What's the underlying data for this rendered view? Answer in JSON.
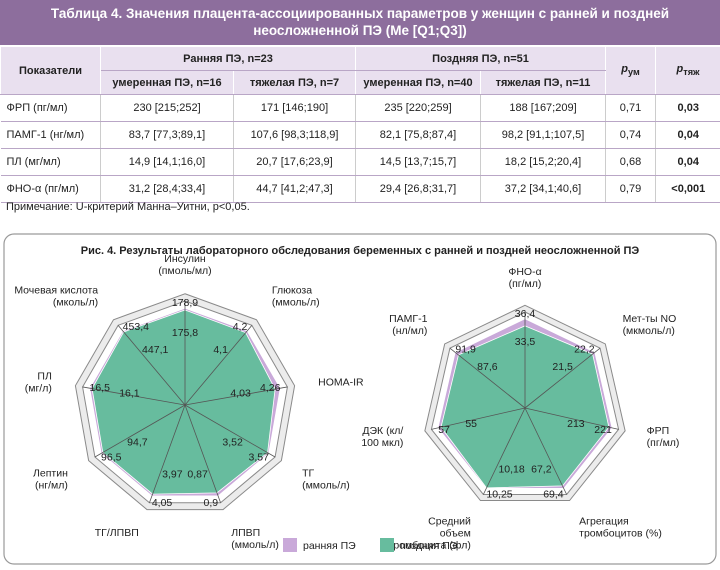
{
  "table": {
    "title": "Таблица 4. Значения плацента-ассоциированных параметров у женщин с ранней и поздней неосложненной ПЭ (Me [Q1;Q3])",
    "columns": {
      "indicator": "Показатели",
      "groups": [
        "Ранняя ПЭ, n=23",
        "Поздняя ПЭ, n=51"
      ],
      "subgroups": [
        "умеренная ПЭ, n=16",
        "тяжелая ПЭ, n=7",
        "умеренная ПЭ, n=40",
        "тяжелая ПЭ, n=11"
      ],
      "p": [
        {
          "symbol": "p",
          "sub": "ум"
        },
        {
          "symbol": "p",
          "sub": "тяж"
        }
      ]
    },
    "rows": [
      [
        "ФРП (пг/мл)",
        "230 [215;252]",
        "171 [146;190]",
        "235 [220;259]",
        "188 [167;209]",
        "0,71",
        "0,03"
      ],
      [
        "ПАМГ-1 (нг/мл)",
        "83,7 [77,3;89,1]",
        "107,6 [98,3;118,9]",
        "82,1 [75,8;87,4]",
        "98,2 [91,1;107,5]",
        "0,74",
        "0,04"
      ],
      [
        "ПЛ (мг/мл)",
        "14,9 [14,1;16,0]",
        "20,7 [17,6;23,9]",
        "14,5 [13,7;15,7]",
        "18,2 [15,2;20,4]",
        "0,68",
        "0,04"
      ],
      [
        "ФНО-α (пг/мл)",
        "31,2 [28,4;33,4]",
        "44,7 [41,2;47,3]",
        "29,4 [26,8;31,7]",
        "37,2 [34,1;40,6]",
        "0,79",
        "<0,001"
      ]
    ],
    "note": "Примечание: U-критерий Манна–Уитни, p<0,05."
  },
  "figure": {
    "title": "Рис. 4. Результаты лабораторного обследования беременных с ранней и поздней неосложненной ПЭ"
  },
  "chart_data": [
    {
      "type": "radar",
      "axes": [
        [
          "Инсулин",
          "(пмоль/мл)"
        ],
        [
          "Глюкоза",
          "(ммоль/л)"
        ],
        [
          "HOMA-IR"
        ],
        [
          "ТГ",
          "(ммоль/л)"
        ],
        [
          "ЛПВП",
          "(ммоль/л)"
        ],
        [
          "ТГ/ЛПВП"
        ],
        [
          "Лептин",
          "(нг/мл)"
        ],
        [
          "ПЛ",
          "(мг/л)"
        ],
        [
          "Мочевая кислота",
          "(мколь/л)"
        ]
      ],
      "series": [
        {
          "name": "ранняя ПЭ",
          "color": "#c9a9d9",
          "values": [
            178.9,
            4.2,
            4.26,
            3.57,
            0.9,
            4.05,
            96.5,
            16.5,
            453.4
          ],
          "value_labels": [
            "178,9",
            "4,2",
            "4,26",
            "3,57",
            "0,9",
            "4,05",
            "96,5",
            "16,5",
            "453,4"
          ]
        },
        {
          "name": "поздняя ПЭ",
          "color": "#67bc9e",
          "values": [
            175.8,
            4.1,
            4.03,
            3.52,
            0.87,
            3.97,
            94.7,
            16.1,
            447.1
          ],
          "value_labels": [
            "175,8",
            "4,1",
            "4,03",
            "3,52",
            "0,87",
            "3,97",
            "94,7",
            "16,1",
            "447,1"
          ]
        }
      ]
    },
    {
      "type": "radar",
      "axes": [
        [
          "ФНО-α",
          "(пг/мл)"
        ],
        [
          "Мет-ты NO",
          "(мкмоль/л)"
        ],
        [
          "ФРП",
          "(пг/мл)"
        ],
        [
          "Агрегация",
          "тромбоцитов (%)"
        ],
        [
          "Средний",
          "объем",
          "тромбоцита (фл)"
        ],
        [
          "ДЭК (кл/",
          "100 мкл)"
        ],
        [
          "ПАМГ-1",
          "(нл/мл)"
        ]
      ],
      "series": [
        {
          "color": "#c9a9d9",
          "values": [
            36.4,
            22.2,
            221,
            69.4,
            10.25,
            57,
            91.9
          ],
          "value_labels": [
            "36,4",
            "22,2",
            "221",
            "69,4",
            "10,25",
            "57",
            "91,9"
          ]
        },
        {
          "color": "#67bc9e",
          "values": [
            33.5,
            21.5,
            213,
            67.2,
            10.18,
            55,
            87.6
          ],
          "value_labels": [
            "33,5",
            "21,5",
            "213",
            "67,2",
            "10,18",
            "55",
            "87,6"
          ]
        }
      ]
    }
  ]
}
